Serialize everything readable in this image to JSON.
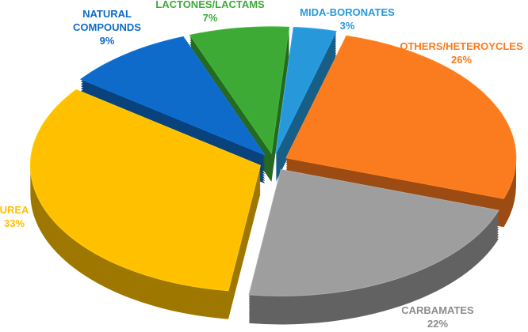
{
  "chart_data": {
    "type": "pie",
    "style": "3d-exploded",
    "slices": [
      {
        "name": "UREA",
        "value": 33,
        "label": "33%",
        "color": "#FFC000"
      },
      {
        "name": "NATURAL COMPOUNDS",
        "name_lines": [
          "NATURAL",
          "COMPOUNDS"
        ],
        "value": 9,
        "label": "9%",
        "color": "#0E6BC9"
      },
      {
        "name": "LACTONES/LACTAMS",
        "value": 7,
        "label": "7%",
        "color": "#3DAA36"
      },
      {
        "name": "MIDA-BORONATES",
        "value": 3,
        "label": "3%",
        "color": "#2799DB"
      },
      {
        "name": "OTHERS/HETEROYCLES",
        "value": 26,
        "label": "26%",
        "color": "#FB7B1F"
      },
      {
        "name": "CARBAMATES",
        "value": 22,
        "label": "22%",
        "color": "#9E9E9E"
      }
    ]
  }
}
